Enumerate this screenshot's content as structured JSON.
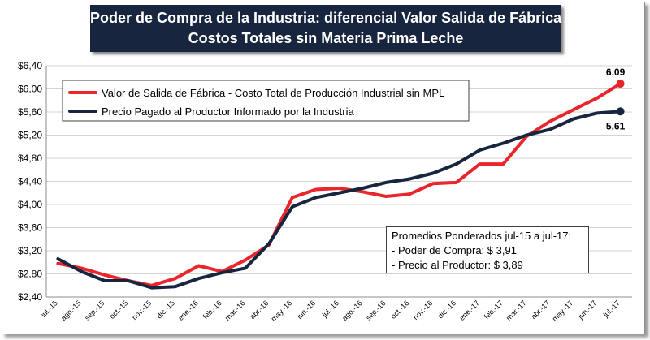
{
  "chart_data": {
    "type": "line",
    "title": "Poder de Compra de la Industria: diferencial Valor Salida de Fábrica - Costos Totales sin Materia Prima Leche",
    "title_lines": [
      "Poder de Compra de la Industria: diferencial Valor Salida de Fábrica -",
      "Costos Totales sin Materia Prima Leche"
    ],
    "xlabel": "",
    "ylabel": "",
    "ylim": [
      2.4,
      6.4
    ],
    "yticks": [
      2.4,
      2.8,
      3.2,
      3.6,
      4.0,
      4.4,
      4.8,
      5.2,
      5.6,
      6.0,
      6.4
    ],
    "ytick_labels": [
      "$2,40",
      "$2,80",
      "$3,20",
      "$3,60",
      "$4,00",
      "$4,40",
      "$4,80",
      "$5,20",
      "$5,60",
      "$6,00",
      "$6,40"
    ],
    "categories": [
      "jul.-15",
      "ago.-15",
      "sep.-15",
      "oct.-15",
      "nov.-15",
      "dic.-15",
      "ene.-16",
      "feb.-16",
      "mar.-16",
      "abr.-16",
      "may.-16",
      "jun.-16",
      "jul.-16",
      "ago.-16",
      "sep.-16",
      "oct.-16",
      "nov.-16",
      "dic.-16",
      "ene.-17",
      "feb.-17",
      "mar.-17",
      "abr.-17",
      "may.-17",
      "jun.-17",
      "jul.-17"
    ],
    "grid": true,
    "legend_position": "top-left",
    "series": [
      {
        "name": "Valor de Salida de Fábrica - Costo Total de Producción Industrial sin MPL",
        "color": "#e8262c",
        "values": [
          2.98,
          2.9,
          2.78,
          2.68,
          2.6,
          2.72,
          2.94,
          2.84,
          3.04,
          3.3,
          4.12,
          4.26,
          4.28,
          4.22,
          4.14,
          4.18,
          4.36,
          4.38,
          4.7,
          4.7,
          5.18,
          5.44,
          5.64,
          5.84,
          6.09
        ],
        "end_label": "6,09"
      },
      {
        "name": "Precio Pagado al Productor Informado por la Industria",
        "color": "#17253f",
        "values": [
          3.06,
          2.84,
          2.68,
          2.68,
          2.56,
          2.58,
          2.72,
          2.82,
          2.9,
          3.32,
          3.96,
          4.12,
          4.2,
          4.28,
          4.38,
          4.44,
          4.54,
          4.7,
          4.94,
          5.06,
          5.2,
          5.3,
          5.48,
          5.58,
          5.61
        ],
        "end_label": "5,61"
      }
    ],
    "annotation": {
      "heading": "Promedios Ponderados jul-15 a jul-17:",
      "line1": "- Poder de Compra: $ 3,91",
      "line2": "- Precio al Productor: $ 3,89"
    }
  }
}
